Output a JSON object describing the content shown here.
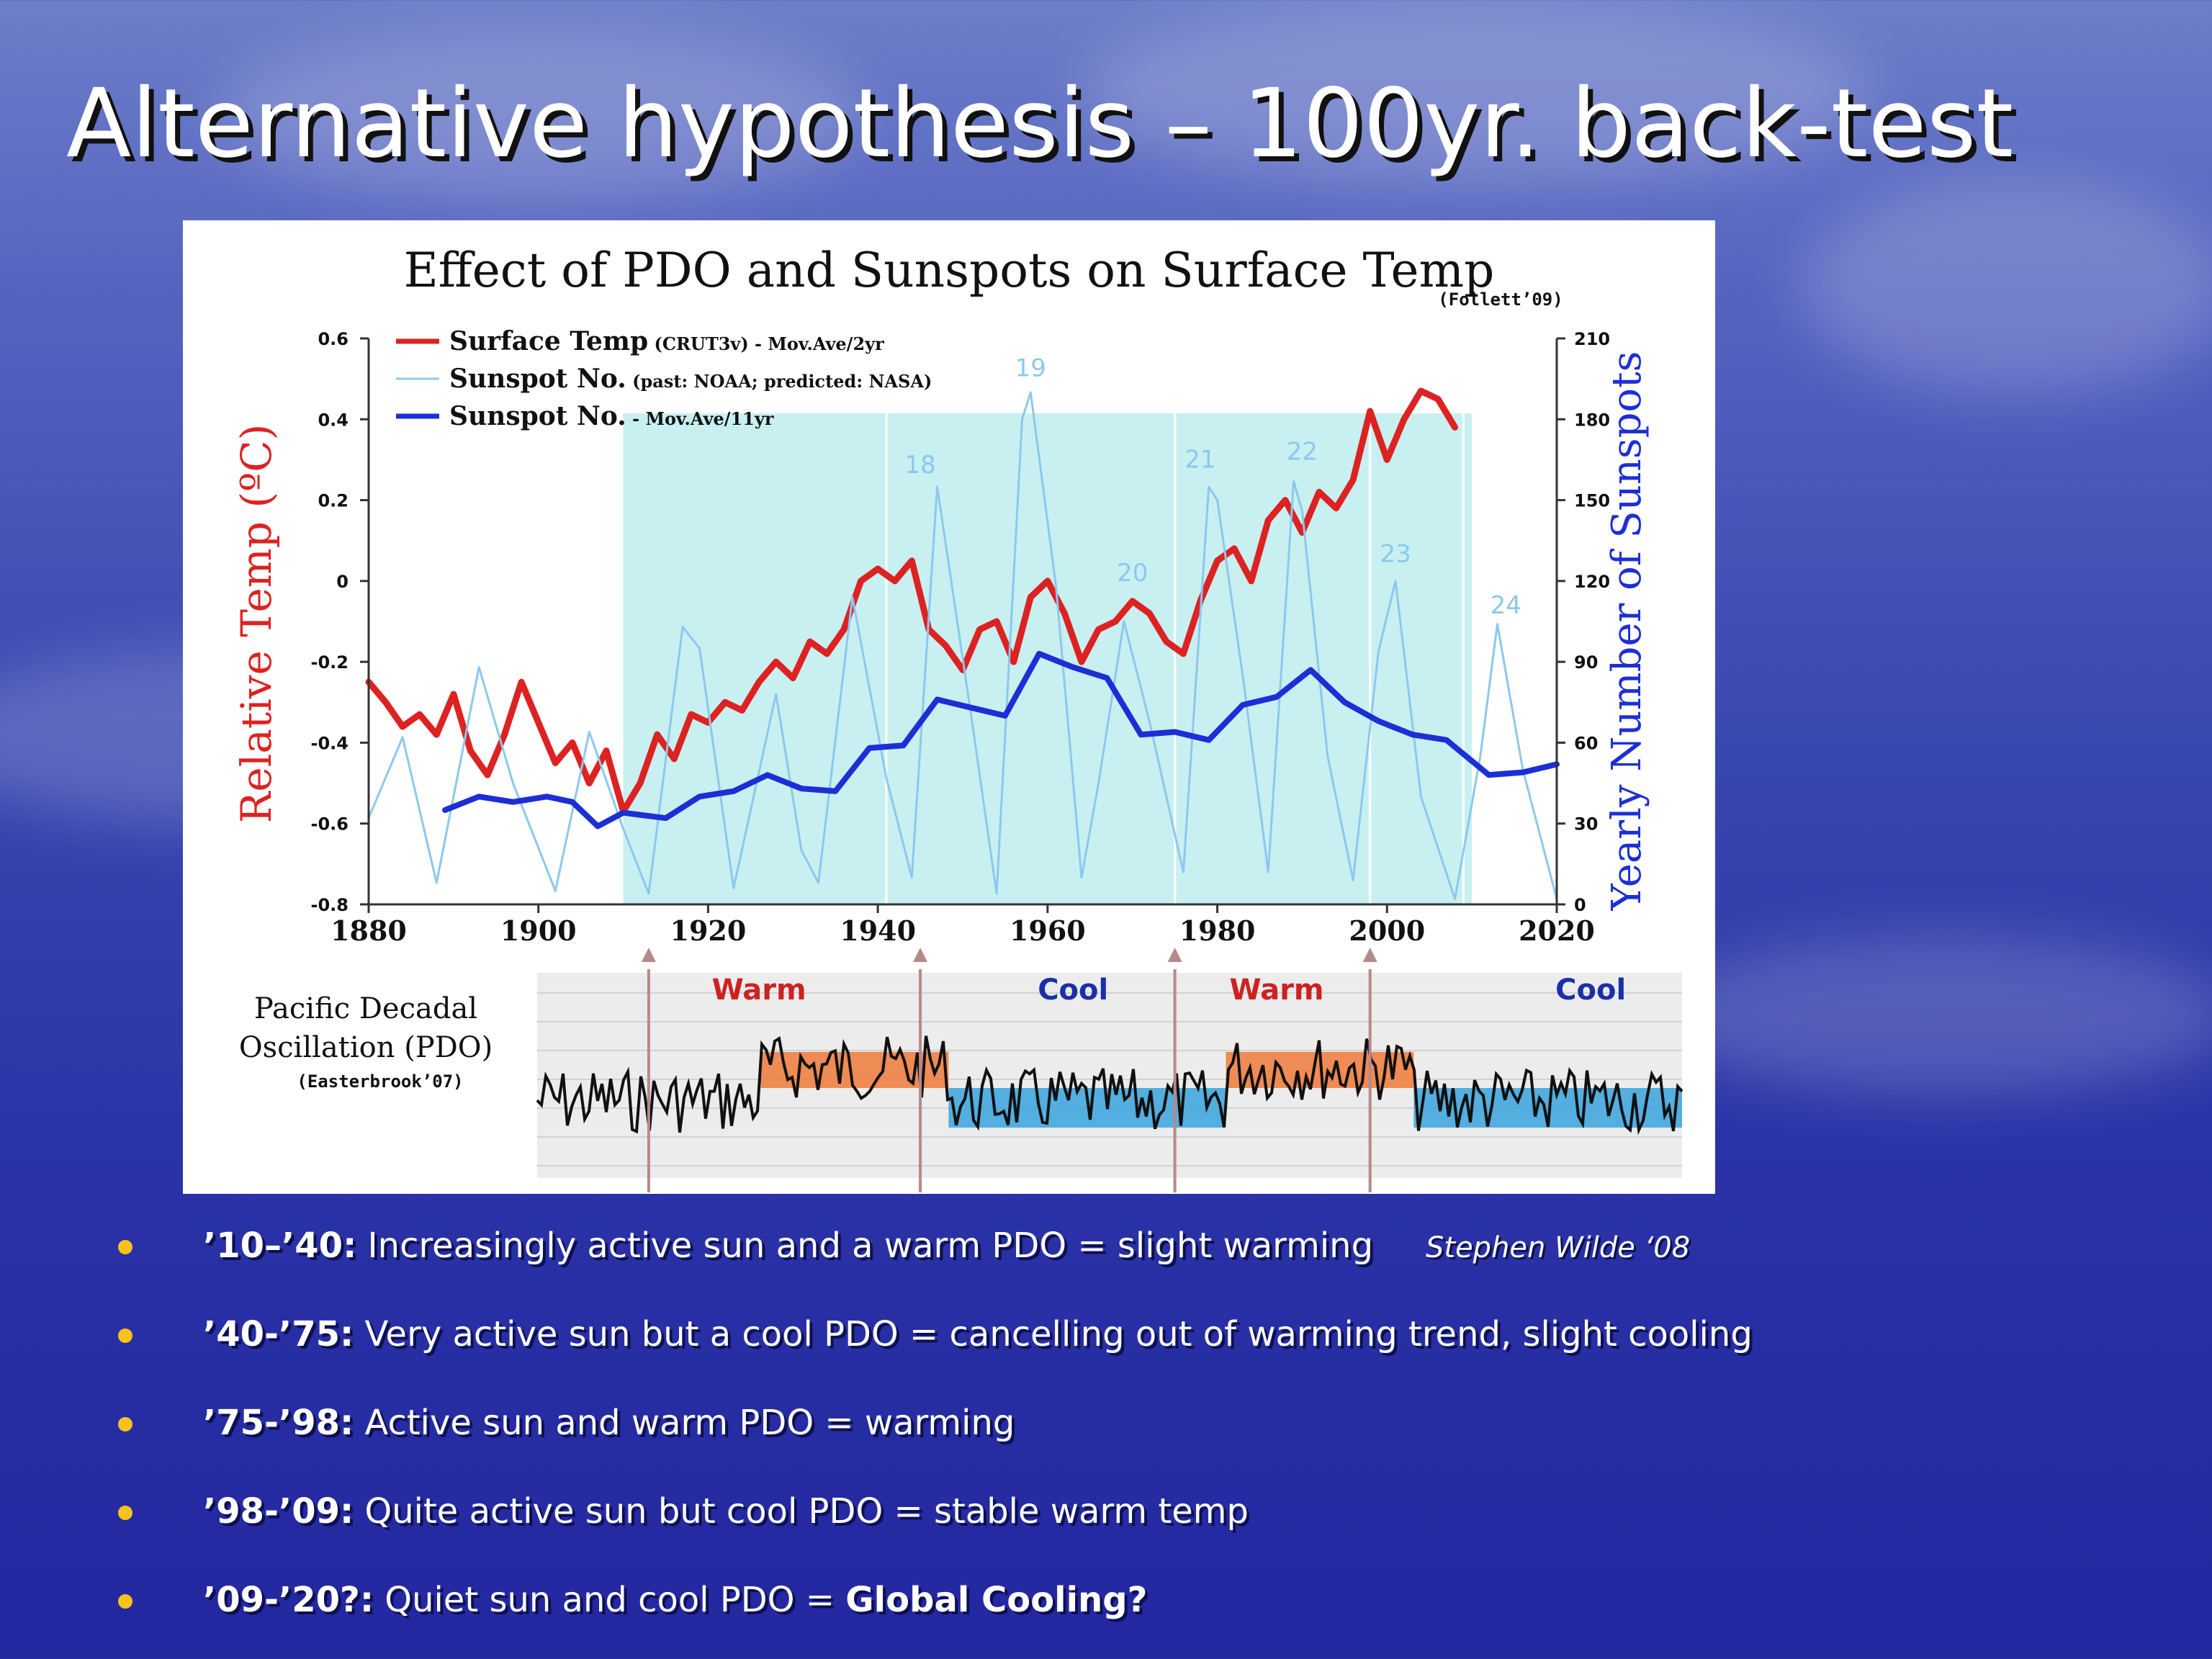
{
  "slide": {
    "title": "Alternative hypothesis – 100yr. back-test",
    "credit": "Stephen Wilde ‘08",
    "bullets": [
      {
        "bold": "’10–’40:",
        "text": " Increasingly active sun and a warm PDO = slight warming",
        "tail": ""
      },
      {
        "bold": "’40-’75:",
        "text": " Very active sun but a cool PDO = cancelling out of warming trend, slight cooling",
        "tail": ""
      },
      {
        "bold": "’75-’98:",
        "text": " Active sun and warm PDO = warming",
        "tail": ""
      },
      {
        "bold": "’98-’09:",
        "text": " Quite active sun but cool PDO = stable warm temp",
        "tail": ""
      },
      {
        "bold": "’09-’20?:",
        "text": " Quiet sun and cool  PDO = ",
        "tail": "Global Cooling?"
      }
    ]
  },
  "chart_data": {
    "type": "line",
    "title": "Effect of PDO and Sunspots on Surface Temp",
    "subtitle": "(Follett’09)",
    "ylabel": "Relative Temp (ºC)",
    "y2label": "Yearly Number of Sunspots",
    "xlim": [
      1880,
      2020
    ],
    "ylim": [
      -0.8,
      0.6
    ],
    "y2lim": [
      0,
      210
    ],
    "x_ticks": [
      1880,
      1900,
      1920,
      1940,
      1960,
      1980,
      2000,
      2020
    ],
    "y_ticks": [
      "0.6",
      "0.4",
      "0.2",
      "0",
      "-0.2",
      "-0.4",
      "-0.6",
      "-0.8"
    ],
    "y_tick_values": [
      0.6,
      0.4,
      0.2,
      0,
      -0.2,
      -0.4,
      -0.6,
      -0.8
    ],
    "y2_ticks": [
      210,
      180,
      150,
      120,
      90,
      60,
      30,
      0
    ],
    "shaded_region": [
      1910,
      2010
    ],
    "epoch_lines": [
      1941,
      1975,
      1998,
      2009
    ],
    "legend": [
      {
        "label": "Surface Temp",
        "note": "(CRUT3v) - Mov.Ave/2yr",
        "color": "#dd2222"
      },
      {
        "label": "Sunspot No.",
        "note": "(past: NOAA; predicted: NASA)",
        "color": "#8cc8ef"
      },
      {
        "label": "Sunspot No.",
        "note": "- Mov.Ave/11yr",
        "color": "#1c2fd6"
      }
    ],
    "cycle_labels": [
      {
        "label": "18",
        "x": 1945,
        "y": 160
      },
      {
        "label": "19",
        "x": 1958,
        "y": 196
      },
      {
        "label": "20",
        "x": 1970,
        "y": 120
      },
      {
        "label": "21",
        "x": 1978,
        "y": 162
      },
      {
        "label": "22",
        "x": 1990,
        "y": 165
      },
      {
        "label": "23",
        "x": 2001,
        "y": 127
      },
      {
        "label": "24",
        "x": 2014,
        "y": 108
      }
    ],
    "series": [
      {
        "name": "Surface Temp",
        "axis": "left",
        "color": "#dd2222",
        "x": [
          1880,
          1882,
          1884,
          1886,
          1888,
          1890,
          1892,
          1894,
          1896,
          1898,
          1900,
          1902,
          1904,
          1906,
          1908,
          1910,
          1912,
          1914,
          1916,
          1918,
          1920,
          1922,
          1924,
          1926,
          1928,
          1930,
          1932,
          1934,
          1936,
          1938,
          1940,
          1942,
          1944,
          1946,
          1948,
          1950,
          1952,
          1954,
          1956,
          1958,
          1960,
          1962,
          1964,
          1966,
          1968,
          1970,
          1972,
          1974,
          1976,
          1978,
          1980,
          1982,
          1984,
          1986,
          1988,
          1990,
          1992,
          1994,
          1996,
          1998,
          2000,
          2002,
          2004,
          2006,
          2008
        ],
        "y": [
          -0.25,
          -0.3,
          -0.36,
          -0.33,
          -0.38,
          -0.28,
          -0.42,
          -0.48,
          -0.38,
          -0.25,
          -0.35,
          -0.45,
          -0.4,
          -0.5,
          -0.42,
          -0.57,
          -0.5,
          -0.38,
          -0.44,
          -0.33,
          -0.35,
          -0.3,
          -0.32,
          -0.25,
          -0.2,
          -0.24,
          -0.15,
          -0.18,
          -0.12,
          0.0,
          0.03,
          0.0,
          0.05,
          -0.12,
          -0.16,
          -0.22,
          -0.12,
          -0.1,
          -0.2,
          -0.04,
          0.0,
          -0.08,
          -0.2,
          -0.12,
          -0.1,
          -0.05,
          -0.08,
          -0.15,
          -0.18,
          -0.05,
          0.05,
          0.08,
          0.0,
          0.15,
          0.2,
          0.12,
          0.22,
          0.18,
          0.25,
          0.42,
          0.3,
          0.4,
          0.47,
          0.45,
          0.38
        ]
      },
      {
        "name": "Sunspot No.",
        "axis": "right",
        "color": "#8cc8ef",
        "x": [
          1880,
          1884,
          1888,
          1893,
          1897,
          1902,
          1906,
          1910,
          1913,
          1917,
          1919,
          1923,
          1928,
          1931,
          1933,
          1937,
          1941,
          1944,
          1947,
          1951,
          1954,
          1957,
          1958,
          1961,
          1964,
          1966,
          1969,
          1972,
          1976,
          1979,
          1980,
          1983,
          1986,
          1989,
          1990,
          1993,
          1996,
          1999,
          2001,
          2004,
          2008,
          2011,
          2013,
          2016,
          2020
        ],
        "y": [
          32,
          62,
          8,
          88,
          45,
          5,
          64,
          28,
          4,
          103,
          95,
          6,
          78,
          20,
          8,
          114,
          47,
          10,
          155,
          70,
          4,
          180,
          190,
          118,
          10,
          45,
          105,
          68,
          12,
          155,
          150,
          85,
          12,
          157,
          146,
          55,
          9,
          94,
          120,
          40,
          2,
          55,
          104,
          50,
          2
        ]
      },
      {
        "name": "Sunspot No.",
        "axis": "right",
        "color": "#1c2fd6",
        "x": [
          1889,
          1893,
          1897,
          1901,
          1904,
          1907,
          1910,
          1915,
          1919,
          1923,
          1927,
          1931,
          1935,
          1939,
          1943,
          1947,
          1951,
          1955,
          1959,
          1963,
          1967,
          1971,
          1975,
          1979,
          1983,
          1987,
          1991,
          1995,
          1999,
          2003,
          2007,
          2012,
          2016,
          2020
        ],
        "y": [
          35,
          40,
          38,
          40,
          38,
          29,
          34,
          32,
          40,
          42,
          48,
          43,
          42,
          58,
          59,
          76,
          73,
          70,
          93,
          88,
          84,
          63,
          64,
          61,
          74,
          77,
          87,
          75,
          68,
          63,
          61,
          48,
          49,
          52
        ]
      }
    ],
    "pdo_label": [
      "Pacific Decadal",
      "Oscillation (PDO)"
    ],
    "pdo_credit": "(Easterbrook’07)",
    "pdo_phases": [
      {
        "label": "Warm",
        "x": 1926,
        "color": "#cc2222"
      },
      {
        "label": "Cool",
        "x": 1963,
        "color": "#1a2fa8"
      },
      {
        "label": "Warm",
        "x": 1987,
        "color": "#cc2222"
      },
      {
        "label": "Cool",
        "x": 2024,
        "color": "#1a2fa8"
      }
    ],
    "pdo_arrows": [
      1913,
      1945,
      1975,
      1998
    ]
  }
}
